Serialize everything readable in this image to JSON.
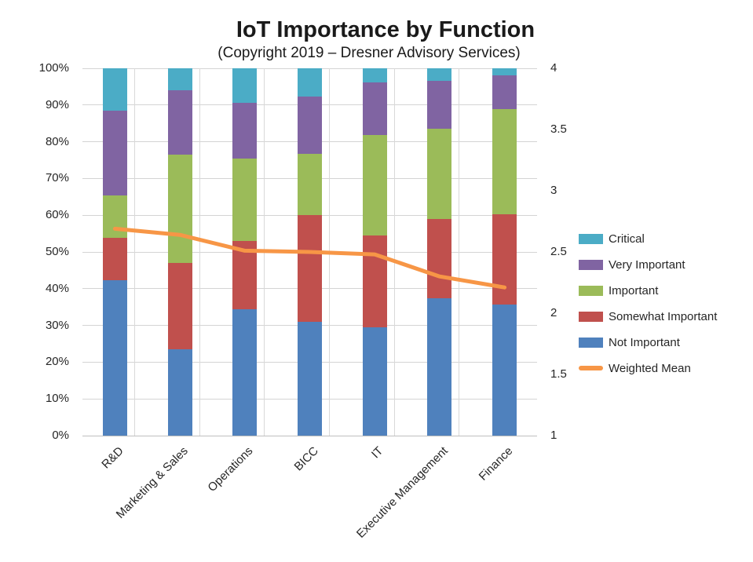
{
  "header": {
    "title": "IoT Importance by Function",
    "subtitle": "(Copyright 2019 – Dresner Advisory Services)"
  },
  "colors": {
    "not_important": "#4F81BD",
    "somewhat_important": "#C0504D",
    "important": "#9BBB59",
    "very_important": "#8064A2",
    "critical": "#4BACC6",
    "weighted_mean": "#F79646",
    "gridline": "#D4D4D4",
    "axis_text": "#262626"
  },
  "chart_data": {
    "type": "bar",
    "subtype": "100%-stacked-columns-with-secondary-axis-line",
    "title": "IoT Importance by Function",
    "subtitle": "(Copyright 2019 – Dresner Advisory Services)",
    "categories": [
      "R&D",
      "Marketing & Sales",
      "Operations",
      "BICC",
      "IT",
      "Executive Management",
      "Finance"
    ],
    "series": [
      {
        "name": "Not Important",
        "color": "#4F81BD",
        "values": [
          42.3,
          23.5,
          34.5,
          31.0,
          29.4,
          37.5,
          35.7
        ]
      },
      {
        "name": "Somewhat Important",
        "color": "#C0504D",
        "values": [
          11.5,
          23.5,
          18.5,
          29.0,
          25.1,
          21.5,
          24.6
        ]
      },
      {
        "name": "Important",
        "color": "#9BBB59",
        "values": [
          11.6,
          29.4,
          22.5,
          16.8,
          27.4,
          24.6,
          28.6
        ]
      },
      {
        "name": "Very Important",
        "color": "#8064A2",
        "values": [
          23.1,
          17.7,
          15.0,
          15.5,
          14.3,
          13.0,
          9.2
        ]
      },
      {
        "name": "Critical",
        "color": "#4BACC6",
        "values": [
          11.5,
          5.9,
          9.5,
          7.7,
          3.8,
          3.4,
          1.9
        ]
      }
    ],
    "line_series": {
      "name": "Weighted Mean",
      "color": "#F79646",
      "axis": "secondary",
      "values": [
        2.69,
        2.64,
        2.51,
        2.5,
        2.48,
        2.3,
        2.21
      ]
    },
    "left_axis": {
      "min": 0,
      "max": 100,
      "ticks": [
        "0%",
        "10%",
        "20%",
        "30%",
        "40%",
        "50%",
        "60%",
        "70%",
        "80%",
        "90%",
        "100%"
      ]
    },
    "right_axis": {
      "min": 1,
      "max": 4,
      "ticks": [
        "1",
        "1.5",
        "2",
        "2.5",
        "3",
        "3.5",
        "4"
      ]
    },
    "grid": true,
    "legend": {
      "position": "right",
      "items": [
        {
          "label": "Critical",
          "color": "#4BACC6",
          "marker": "rect"
        },
        {
          "label": "Very Important",
          "color": "#8064A2",
          "marker": "rect"
        },
        {
          "label": "Important",
          "color": "#9BBB59",
          "marker": "rect"
        },
        {
          "label": "Somewhat Important",
          "color": "#C0504D",
          "marker": "rect"
        },
        {
          "label": "Not Important",
          "color": "#4F81BD",
          "marker": "rect"
        },
        {
          "label": "Weighted Mean",
          "color": "#F79646",
          "marker": "line"
        }
      ]
    }
  }
}
